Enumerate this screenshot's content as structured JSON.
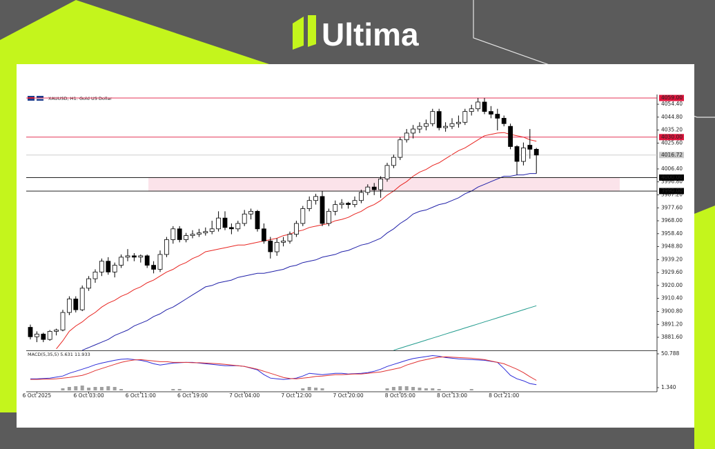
{
  "header": {
    "brand": "Ultima"
  },
  "chart_data": {
    "type": "candlestick",
    "title": "XAUUSD, H1:  Gold US Dollar",
    "categories": [
      null,
      "6 Oct 2025",
      null,
      null,
      null,
      null,
      null,
      null,
      null,
      "6 Oct 03:00",
      null,
      null,
      null,
      null,
      null,
      null,
      null,
      "6 Oct 11:00",
      null,
      null,
      null,
      null,
      null,
      null,
      null,
      "6 Oct 19:00",
      null,
      null,
      null,
      null,
      null,
      null,
      null,
      "7 Oct 04:00",
      null,
      null,
      null,
      null,
      null,
      null,
      null,
      "7 Oct 12:00",
      null,
      null,
      null,
      null,
      null,
      null,
      null,
      "7 Oct 20:00",
      null,
      null,
      null,
      null,
      null,
      null,
      null,
      "8 Oct 05:00",
      null,
      null,
      null,
      null,
      null,
      null,
      null,
      "8 Oct 13:00",
      null,
      null,
      null,
      null,
      null,
      null,
      null,
      "8 Oct 21:00",
      null,
      null,
      null,
      null,
      null
    ],
    "open": [
      3889,
      3882,
      3884,
      3880,
      3886,
      3887,
      3900,
      3910,
      3902,
      3918,
      3925,
      3930,
      3938,
      3930,
      3935,
      3941,
      3942,
      3941,
      3942,
      3935,
      3932,
      3943,
      3954,
      3962,
      3954,
      3957,
      3958,
      3959,
      3960,
      3962,
      3970,
      3963,
      3962,
      3966,
      3973,
      3975,
      3962,
      3953,
      3945,
      3952,
      3953,
      3958,
      3966,
      3977,
      3983,
      3986,
      3966,
      3975,
      3980,
      3981,
      3980,
      3983,
      3989,
      3993,
      3991,
      3999,
      4009,
      4015,
      4028,
      4033,
      4036,
      4038,
      4040,
      4049,
      4037,
      4038,
      4040,
      4041,
      4049,
      4051,
      4056,
      4049,
      4047,
      4044,
      4038,
      4023,
      4012,
      4024,
      4021
    ],
    "high": [
      3891,
      3886,
      3885,
      3887,
      3888,
      3902,
      3912,
      3912,
      3920,
      3927,
      3932,
      3940,
      3941,
      3937,
      3943,
      3947,
      3944,
      3943,
      3943,
      3938,
      3946,
      3956,
      3964,
      3964,
      3959,
      3961,
      3962,
      3963,
      3968,
      3975,
      3975,
      3966,
      3968,
      3976,
      3977,
      3976,
      3966,
      3956,
      3955,
      3956,
      3960,
      3968,
      3979,
      3986,
      3988,
      3990,
      3977,
      3983,
      3984,
      3982,
      3986,
      3991,
      3995,
      3996,
      4001,
      4011,
      4017,
      4030,
      4036,
      4039,
      4041,
      4043,
      4051,
      4051,
      4041,
      4044,
      4046,
      4051,
      4054,
      4059,
      4059,
      4053,
      4051,
      4046,
      4040,
      4024,
      4026,
      4036,
      4022
    ],
    "low": [
      3880,
      3878,
      3878,
      3879,
      3883,
      3886,
      3898,
      3900,
      3901,
      3916,
      3922,
      3927,
      3928,
      3926,
      3933,
      3938,
      3938,
      3937,
      3933,
      3929,
      3930,
      3941,
      3951,
      3952,
      3952,
      3955,
      3956,
      3957,
      3958,
      3960,
      3961,
      3958,
      3960,
      3964,
      3969,
      3960,
      3951,
      3940,
      3942,
      3949,
      3951,
      3956,
      3964,
      3975,
      3980,
      3964,
      3964,
      3972,
      3977,
      3977,
      3978,
      3981,
      3987,
      3987,
      3985,
      3997,
      4007,
      4013,
      4026,
      4029,
      4033,
      4035,
      4038,
      4035,
      4034,
      4036,
      4037,
      4039,
      4046,
      4049,
      4047,
      4044,
      4035,
      4038,
      4021,
      4002,
      4009,
      4014,
      4003
    ],
    "close": [
      3882,
      3884,
      3880,
      3886,
      3887,
      3900,
      3910,
      3902,
      3918,
      3925,
      3930,
      3938,
      3930,
      3935,
      3941,
      3942,
      3941,
      3942,
      3935,
      3932,
      3943,
      3954,
      3962,
      3954,
      3957,
      3958,
      3959,
      3960,
      3962,
      3970,
      3963,
      3962,
      3966,
      3973,
      3975,
      3962,
      3953,
      3945,
      3952,
      3953,
      3958,
      3966,
      3977,
      3983,
      3986,
      3966,
      3975,
      3980,
      3981,
      3980,
      3983,
      3989,
      3993,
      3991,
      3999,
      4009,
      4015,
      4028,
      4033,
      4036,
      4038,
      4040,
      4049,
      4037,
      4038,
      4040,
      4041,
      4049,
      4051,
      4056,
      4049,
      4047,
      4044,
      4040,
      4023,
      4012,
      4022,
      4021,
      4016.7
    ],
    "up_color": "#ffffff",
    "down_color": "#000000",
    "ylim": [
      3871.9,
      4061.6
    ],
    "yticks": [
      {
        "value": 4054.4,
        "label": "4054.40"
      },
      {
        "value": 4044.8,
        "label": "4044.80"
      },
      {
        "value": 4035.2,
        "label": "4035.20"
      },
      {
        "value": 4025.6,
        "label": "4025.60"
      },
      {
        "value": 4006.4,
        "label": "4006.40"
      },
      {
        "value": 3996.8,
        "label": "3996.80"
      },
      {
        "value": 3987.2,
        "label": "3987.20"
      },
      {
        "value": 3977.6,
        "label": "3977.60"
      },
      {
        "value": 3968,
        "label": "3968.00"
      },
      {
        "value": 3958.4,
        "label": "3958.40"
      },
      {
        "value": 3948.8,
        "label": "3948.80"
      },
      {
        "value": 3939.2,
        "label": "3939.20"
      },
      {
        "value": 3929.6,
        "label": "3929.60"
      },
      {
        "value": 3920,
        "label": "3920.00"
      },
      {
        "value": 3910.4,
        "label": "3910.40"
      },
      {
        "value": 3900.8,
        "label": "3900.80"
      },
      {
        "value": 3891.2,
        "label": "3891.20"
      },
      {
        "value": 3881.6,
        "label": "3881.60"
      }
    ],
    "overlays": [
      {
        "color": "#e8231f",
        "values": [
          null,
          null,
          null,
          null,
          3873,
          3879,
          3886,
          3890,
          3893,
          3897,
          3900,
          3904,
          3907,
          3909,
          3912,
          3914,
          3917,
          3919,
          3922,
          3924,
          3927,
          3930,
          3932,
          3935,
          3937,
          3940,
          3942,
          3945,
          3946,
          3947,
          3948,
          3949,
          3950,
          3950,
          3951,
          3952,
          3953,
          3954,
          3955,
          3957,
          3958,
          3960,
          3961,
          3963,
          3964,
          3965,
          3966,
          3968,
          3969,
          3970.5,
          3973,
          3975,
          3978,
          3980,
          3983,
          3987,
          3990,
          3994,
          3997,
          4001,
          4004,
          4006,
          4009,
          4011,
          4014,
          4017,
          4020,
          4022,
          4025,
          4028,
          4031,
          4032,
          4033,
          4033.4,
          4032,
          4031,
          4030,
          4028,
          4027
        ]
      },
      {
        "color": "#1f1fa8",
        "values": [
          null,
          null,
          null,
          null,
          null,
          null,
          null,
          null,
          3872,
          3874,
          3876,
          3878,
          3880,
          3883,
          3885,
          3887,
          3890,
          3892,
          3894,
          3897,
          3899,
          3902,
          3904,
          3907,
          3910,
          3913,
          3916,
          3919,
          3920,
          3922,
          3923,
          3924,
          3926,
          3927,
          3928,
          3929,
          3929,
          3930,
          3931,
          3932,
          3934,
          3935,
          3937,
          3938,
          3939,
          3941,
          3942,
          3943,
          3945,
          3946,
          3948,
          3950,
          3951,
          3953,
          3955,
          3959,
          3962,
          3966,
          3969,
          3973,
          3975,
          3976,
          3978,
          3980,
          3981,
          3983,
          3985,
          3988,
          3990,
          3993,
          3995,
          3997,
          3999,
          4001,
          4001,
          4002,
          4002,
          4003,
          4003
        ]
      },
      {
        "color": "#1f9a8c",
        "values": [
          null,
          null,
          null,
          null,
          null,
          null,
          null,
          null,
          null,
          null,
          null,
          null,
          null,
          null,
          null,
          null,
          null,
          null,
          null,
          null,
          null,
          null,
          null,
          null,
          null,
          null,
          null,
          null,
          null,
          null,
          null,
          null,
          null,
          null,
          null,
          null,
          null,
          null,
          null,
          null,
          null,
          null,
          null,
          null,
          null,
          null,
          null,
          null,
          null,
          null,
          null,
          null,
          null,
          null,
          null,
          null,
          3872,
          3873.5,
          3875,
          3876.5,
          3878,
          3879.5,
          3881,
          3882.5,
          3884,
          3885.5,
          3887,
          3888.5,
          3890,
          3891.5,
          3893,
          3894.5,
          3896,
          3897.5,
          3899,
          3900.5,
          3902,
          3903.5,
          3905
        ]
      }
    ],
    "levels": [
      {
        "value": 4059,
        "label": "4059.00",
        "color": "#e0143c"
      },
      {
        "value": 4030,
        "label": "4030.00",
        "color": "#e0143c"
      },
      {
        "value": 4016.72,
        "label": "4016.72",
        "color": "#c8c8c8"
      },
      {
        "value": 4000,
        "label": "4000.00",
        "color": "#000000"
      },
      {
        "value": 3990,
        "label": "3990.00",
        "color": "#000000"
      }
    ],
    "zone_color": "#fbe3ea",
    "macd": {
      "title": "MACD(5,35,5) 5.631 11.933",
      "ylim": [
        1.34,
        50.788
      ],
      "yticks": [
        {
          "value": 50.788,
          "label": "50.788"
        },
        {
          "value": 1.34,
          "label": "1.340"
        }
      ],
      "main": {
        "color": "#2a2ad8",
        "values": [
          14.3,
          14.3,
          14.8,
          15.3,
          16.8,
          18.3,
          22.3,
          25.3,
          28.3,
          31.3,
          34.8,
          37.3,
          39.3,
          41.3,
          42.8,
          43.3,
          42.3,
          41.3,
          39.3,
          36.3,
          34.3,
          35.8,
          37.3,
          37.8,
          38.3,
          38.3,
          37.3,
          36.3,
          35.3,
          34.3,
          33.3,
          33.3,
          33.3,
          32.3,
          29.8,
          27.3,
          20.3,
          15.3,
          14.3,
          13.3,
          14.3,
          15.3,
          18.3,
          22.3,
          21.3,
          20.3,
          21.3,
          22.3,
          22.3,
          21.3,
          21.8,
          22.3,
          23.3,
          25.3,
          28.3,
          32.3,
          35.3,
          38.3,
          41.3,
          43.8,
          45.3,
          46.8,
          48.3,
          47.3,
          45.3,
          44.3,
          43.3,
          42.8,
          42.3,
          41.8,
          41.3,
          39.8,
          38.3,
          29.3,
          19.3,
          14.3,
          11.3,
          7.3,
          5.6
        ]
      },
      "signal": {
        "color": "#e03030",
        "values": [
          13.3,
          13.3,
          13.8,
          13.8,
          14.3,
          15.3,
          16.3,
          17.8,
          19.3,
          22.3,
          26.3,
          29.3,
          32.3,
          35.3,
          38.3,
          40.3,
          41.8,
          42.3,
          41.3,
          40.3,
          39.3,
          39.3,
          38.3,
          38.3,
          38.3,
          37.8,
          37.8,
          37.3,
          36.8,
          36.3,
          35.3,
          34.3,
          33.3,
          32.3,
          30.3,
          28.3,
          25.3,
          22.3,
          19.3,
          16.3,
          14.8,
          14.3,
          15.3,
          16.3,
          17.8,
          18.3,
          19.3,
          20.3,
          20.3,
          20.8,
          21.3,
          21.3,
          22.3,
          23.3,
          24.3,
          26.3,
          28.3,
          30.3,
          34.3,
          37.3,
          40.3,
          42.3,
          44.3,
          45.8,
          46.3,
          45.8,
          45.3,
          44.8,
          44.3,
          43.3,
          42.3,
          40.3,
          38.3,
          36.3,
          32.3,
          28.3,
          23.3,
          17.3,
          11.9
        ]
      },
      "histogram": {
        "color": "#a0a0a0",
        "values": [
          0,
          0,
          0,
          0,
          0,
          3,
          5,
          6,
          7,
          4,
          5,
          5,
          6,
          5,
          2,
          0,
          0,
          0,
          0,
          0,
          0,
          0,
          2,
          2,
          0,
          0,
          0,
          0,
          0,
          0,
          0,
          0,
          0,
          0,
          0,
          0,
          0,
          0,
          0,
          0,
          0,
          0,
          3,
          5,
          4,
          3,
          0,
          0,
          0,
          0,
          0,
          0,
          0,
          0,
          0,
          3,
          5,
          6,
          6,
          5,
          4,
          3,
          3,
          2,
          0,
          0,
          0,
          0,
          2,
          0,
          0,
          0,
          0,
          0,
          0,
          0,
          0,
          0,
          0
        ]
      }
    }
  }
}
